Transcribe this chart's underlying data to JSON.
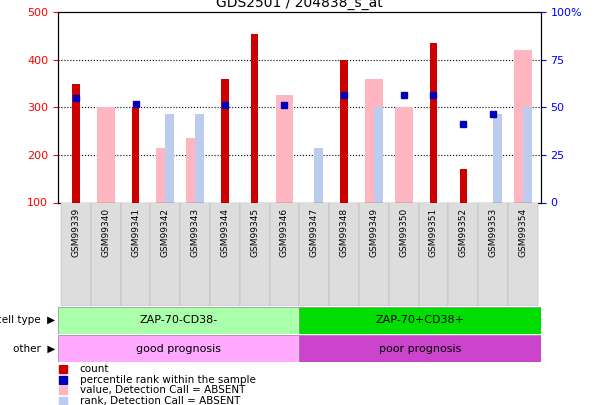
{
  "title": "GDS2501 / 204838_s_at",
  "samples": [
    "GSM99339",
    "GSM99340",
    "GSM99341",
    "GSM99342",
    "GSM99343",
    "GSM99344",
    "GSM99345",
    "GSM99346",
    "GSM99347",
    "GSM99348",
    "GSM99349",
    "GSM99350",
    "GSM99351",
    "GSM99352",
    "GSM99353",
    "GSM99354"
  ],
  "count_values": [
    350,
    0,
    300,
    0,
    0,
    360,
    455,
    0,
    0,
    400,
    0,
    0,
    435,
    170,
    0,
    0
  ],
  "percentile_values": [
    320,
    0,
    308,
    0,
    0,
    305,
    0,
    305,
    0,
    325,
    0,
    325,
    325,
    265,
    285,
    0
  ],
  "absent_value_values": [
    0,
    300,
    0,
    215,
    235,
    0,
    0,
    325,
    0,
    0,
    360,
    300,
    0,
    0,
    0,
    420
  ],
  "absent_rank_values": [
    0,
    0,
    0,
    285,
    285,
    0,
    0,
    0,
    215,
    0,
    300,
    0,
    0,
    0,
    285,
    300
  ],
  "ylim": [
    100,
    500
  ],
  "yticks_left": [
    100,
    200,
    300,
    400,
    500
  ],
  "yticks_right_pos": [
    100,
    200,
    300,
    400,
    500
  ],
  "yticks_right_labels": [
    "0",
    "25",
    "50",
    "75",
    "100%"
  ],
  "cell_type_groups": [
    {
      "label": "ZAP-70-CD38-",
      "start": 0,
      "end": 8,
      "color": "#AAFFAA"
    },
    {
      "label": "ZAP-70+CD38+",
      "start": 8,
      "end": 16,
      "color": "#00DD00"
    }
  ],
  "other_groups": [
    {
      "label": "good prognosis",
      "start": 0,
      "end": 8,
      "color": "#FFAAFF"
    },
    {
      "label": "poor prognosis",
      "start": 8,
      "end": 16,
      "color": "#CC44CC"
    }
  ],
  "count_color": "#CC0000",
  "percentile_color": "#0000BB",
  "absent_value_color": "#FFB6C1",
  "absent_rank_color": "#BBCCEE",
  "legend_items": [
    {
      "label": "count",
      "color": "#CC0000"
    },
    {
      "label": "percentile rank within the sample",
      "color": "#0000BB"
    },
    {
      "label": "value, Detection Call = ABSENT",
      "color": "#FFB6C1"
    },
    {
      "label": "rank, Detection Call = ABSENT",
      "color": "#BBCCEE"
    }
  ]
}
